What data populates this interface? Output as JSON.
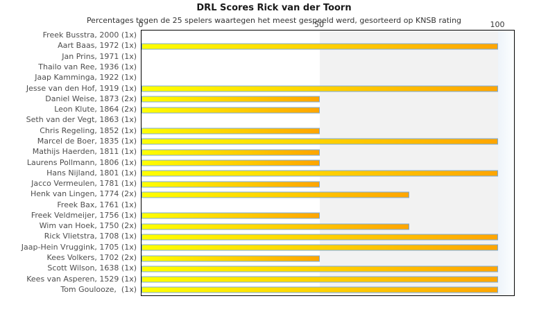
{
  "title": "DRL Scores Rick van der Toorn",
  "subtitle": "Percentages tegen de 25 spelers waartegen het meest gespeeld werd, gesorteerd op KNSB rating",
  "axis": {
    "ticks": [
      0,
      50,
      100
    ]
  },
  "colors": {
    "bar_gradient_start": "#ffff00",
    "bar_gradient_end": "#ffa500",
    "bar_border": "#7aabdc",
    "band_mid_gray": "#f2f2f2",
    "band_right_blue": "#eef4fa",
    "plot_border": "#000000",
    "label_text": "#4d4d4d"
  },
  "chart_data": {
    "type": "bar",
    "orientation": "horizontal",
    "title": "DRL Scores Rick van der Toorn",
    "subtitle": "Percentages tegen de 25 spelers waartegen het meest gespeeld werd, gesorteerd op KNSB rating",
    "xlabel": "",
    "ylabel": "",
    "xlim": [
      0,
      104.5
    ],
    "grid": false,
    "legend": "none",
    "categories": [
      "Freek Busstra, 2000 (1x)",
      "Aart Baas, 1972 (1x)",
      "Jan Prins, 1971 (1x)",
      "Thailo van Ree, 1936 (1x)",
      "Jaap Kamminga, 1922 (1x)",
      "Jesse van den Hof, 1919 (1x)",
      "Daniel Weise, 1873 (2x)",
      "Leon Klute, 1864 (2x)",
      "Seth van der Vegt, 1863 (1x)",
      "Chris Regeling, 1852 (1x)",
      "Marcel de Boer, 1835 (1x)",
      "Mathijs Haerden, 1811 (1x)",
      "Laurens Pollmann, 1806 (1x)",
      "Hans Nijland, 1801 (1x)",
      "Jacco Vermeulen, 1781 (1x)",
      "Henk van Lingen, 1774 (2x)",
      "Freek Bax, 1761 (1x)",
      "Freek Veldmeijer, 1756 (1x)",
      "Wim van Hoek, 1750 (2x)",
      "Rick Vlietstra, 1708 (1x)",
      "Jaap-Hein Vruggink, 1705 (1x)",
      "Kees Volkers, 1702 (2x)",
      "Scott Wilson, 1638 (1x)",
      "Kees van Asperen, 1529 (1x)",
      "Tom Goulooze,  (1x)"
    ],
    "values": [
      0,
      100,
      0,
      0,
      0,
      100,
      50,
      50,
      0,
      50,
      100,
      50,
      50,
      100,
      50,
      75,
      0,
      50,
      75,
      100,
      100,
      50,
      100,
      100,
      100
    ]
  }
}
